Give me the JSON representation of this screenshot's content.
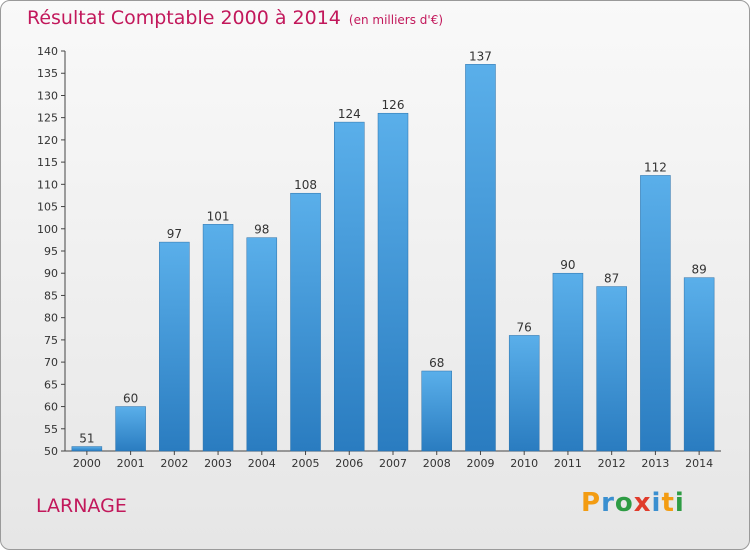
{
  "header": {
    "title": "Résultat Comptable 2000 à 2014",
    "unit": "(en milliers d'€)"
  },
  "footer": {
    "commune": "LARNAGE",
    "logo": "Proxiti"
  },
  "colors": {
    "title": "#c2185b",
    "bar_light": "#5aafea",
    "bar_dark": "#2a7cc0",
    "logo_letters": [
      "#f39c12",
      "#3a8fd0",
      "#2e9c44",
      "#e03b2b",
      "#3a8fd0",
      "#f39c12",
      "#2e9c44"
    ]
  },
  "chart_data": {
    "type": "bar",
    "categories": [
      "2000",
      "2001",
      "2002",
      "2003",
      "2004",
      "2005",
      "2006",
      "2007",
      "2008",
      "2009",
      "2010",
      "2011",
      "2012",
      "2013",
      "2014"
    ],
    "values": [
      51,
      60,
      97,
      101,
      98,
      108,
      124,
      126,
      68,
      137,
      76,
      90,
      87,
      112,
      89
    ],
    "title": "Résultat Comptable 2000 à 2014",
    "xlabel": "",
    "ylabel": "",
    "ylim": [
      50,
      140
    ],
    "yticks": [
      50,
      55,
      60,
      65,
      70,
      75,
      80,
      85,
      90,
      95,
      100,
      105,
      110,
      115,
      120,
      125,
      130,
      135,
      140
    ],
    "grid": false,
    "data_labels": true
  }
}
